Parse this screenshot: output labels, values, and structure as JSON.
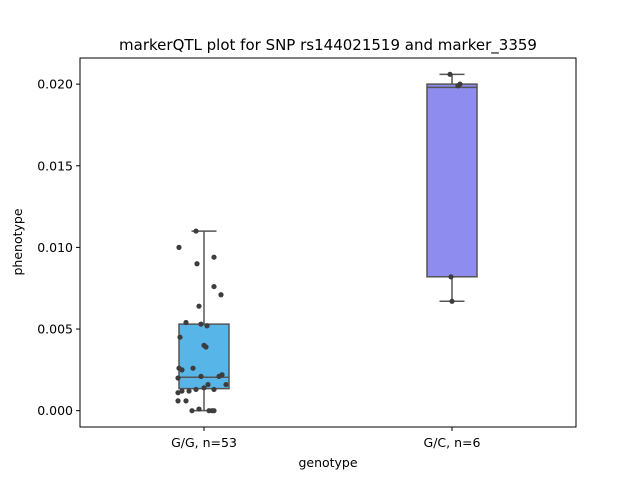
{
  "chart_data": {
    "type": "box",
    "title": "markerQTL plot for SNP rs144021519 and marker_3359",
    "xlabel": "genotype",
    "ylabel": "phenotype",
    "ylim": [
      -0.001,
      0.0216
    ],
    "yticks": [
      0.0,
      0.005,
      0.01,
      0.015,
      0.02
    ],
    "ytick_labels": [
      "0.000",
      "0.005",
      "0.010",
      "0.015",
      "0.020"
    ],
    "categories": [
      "G/G, n=53",
      "G/C, n=6"
    ],
    "boxes": [
      {
        "category": "G/G, n=53",
        "color": "#57b5e8",
        "whisker_low": 0.0,
        "q1": 0.00135,
        "median": 0.00205,
        "q3": 0.0053,
        "whisker_high": 0.011
      },
      {
        "category": "G/C, n=6",
        "color": "#8f8cf0",
        "whisker_low": 0.0067,
        "q1": 0.0082,
        "median": 0.0198,
        "q3": 0.02,
        "whisker_high": 0.0206
      }
    ],
    "points": [
      {
        "group": 0,
        "dx": -0.08,
        "y": 0.011
      },
      {
        "group": 0,
        "dx": -0.25,
        "y": 0.01
      },
      {
        "group": 0,
        "dx": 0.1,
        "y": 0.0094
      },
      {
        "group": 0,
        "dx": -0.07,
        "y": 0.009
      },
      {
        "group": 0,
        "dx": 0.1,
        "y": 0.0076
      },
      {
        "group": 0,
        "dx": 0.17,
        "y": 0.0071
      },
      {
        "group": 0,
        "dx": -0.05,
        "y": 0.0064
      },
      {
        "group": 0,
        "dx": -0.18,
        "y": 0.0054
      },
      {
        "group": 0,
        "dx": -0.03,
        "y": 0.0053
      },
      {
        "group": 0,
        "dx": 0.03,
        "y": 0.0052
      },
      {
        "group": 0,
        "dx": -0.24,
        "y": 0.0045
      },
      {
        "group": 0,
        "dx": 0.0,
        "y": 0.004
      },
      {
        "group": 0,
        "dx": 0.02,
        "y": 0.0039
      },
      {
        "group": 0,
        "dx": -0.25,
        "y": 0.0026
      },
      {
        "group": 0,
        "dx": -0.22,
        "y": 0.0025
      },
      {
        "group": 0,
        "dx": -0.11,
        "y": 0.0026
      },
      {
        "group": 0,
        "dx": -0.26,
        "y": 0.002
      },
      {
        "group": 0,
        "dx": -0.03,
        "y": 0.0021
      },
      {
        "group": 0,
        "dx": 0.15,
        "y": 0.0021
      },
      {
        "group": 0,
        "dx": 0.18,
        "y": 0.0022
      },
      {
        "group": 0,
        "dx": 0.22,
        "y": 0.0016
      },
      {
        "group": 0,
        "dx": 0.04,
        "y": 0.0016
      },
      {
        "group": 0,
        "dx": 0.0,
        "y": 0.0014
      },
      {
        "group": 0,
        "dx": -0.08,
        "y": 0.0013
      },
      {
        "group": 0,
        "dx": -0.15,
        "y": 0.0012
      },
      {
        "group": 0,
        "dx": -0.22,
        "y": 0.0012
      },
      {
        "group": 0,
        "dx": -0.26,
        "y": 0.0011
      },
      {
        "group": 0,
        "dx": 0.1,
        "y": 0.0013
      },
      {
        "group": 0,
        "dx": -0.26,
        "y": 0.0006
      },
      {
        "group": 0,
        "dx": -0.18,
        "y": 0.0006
      },
      {
        "group": 0,
        "dx": -0.05,
        "y": 0.0001
      },
      {
        "group": 0,
        "dx": -0.12,
        "y": 0.0
      },
      {
        "group": 0,
        "dx": 0.05,
        "y": 0.0
      },
      {
        "group": 0,
        "dx": 0.1,
        "y": 0.0
      },
      {
        "group": 0,
        "dx": 0.08,
        "y": 0.0
      },
      {
        "group": 1,
        "dx": -0.02,
        "y": 0.0206
      },
      {
        "group": 1,
        "dx": 0.08,
        "y": 0.02
      },
      {
        "group": 1,
        "dx": 0.06,
        "y": 0.0199
      },
      {
        "group": 1,
        "dx": -0.01,
        "y": 0.0082
      },
      {
        "group": 1,
        "dx": 0.0,
        "y": 0.0067
      }
    ],
    "point_color": "#3d3d3d",
    "box_edge_color": "#555555",
    "grid": false
  }
}
